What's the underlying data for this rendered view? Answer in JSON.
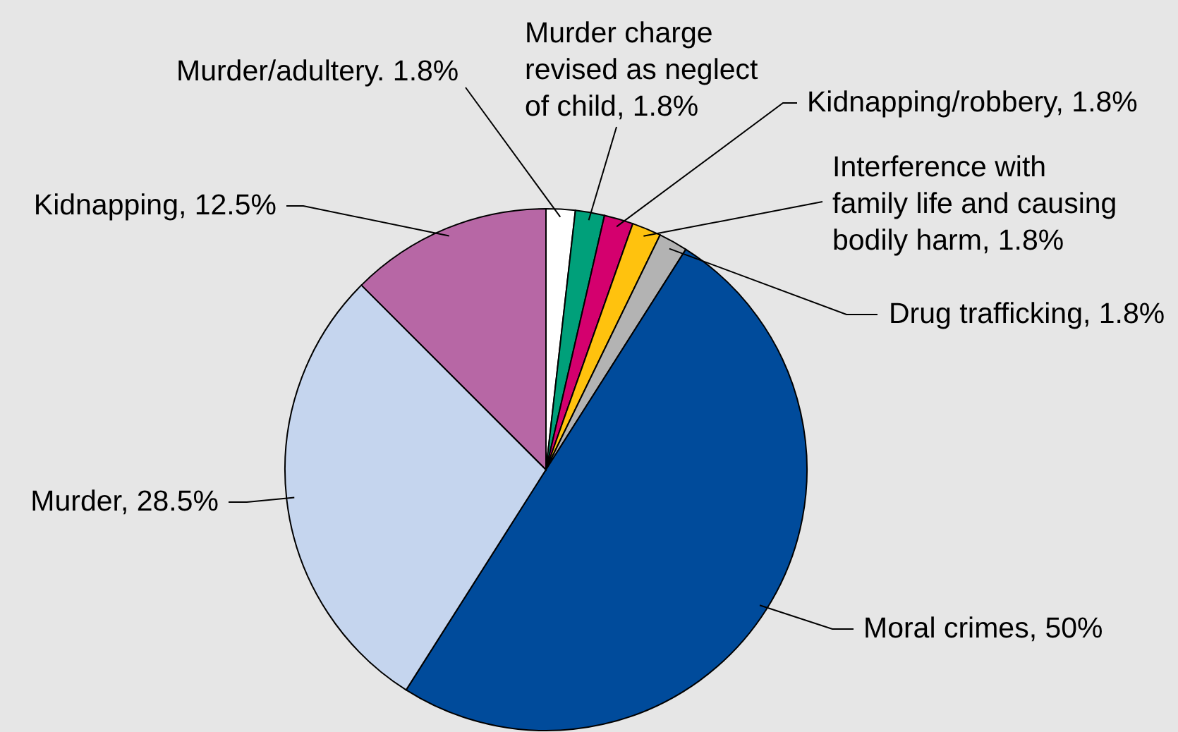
{
  "chart_data": {
    "type": "pie",
    "categories": [
      "Murder/adultery.",
      "Murder charge revised as neglect of child",
      "Kidnapping/robbery",
      "Interference with family life and causing bodily harm",
      "Drug trafficking",
      "Moral crimes",
      "Murder",
      "Kidnapping"
    ],
    "values": [
      1.8,
      1.8,
      1.8,
      1.8,
      1.8,
      50,
      28.5,
      12.5
    ],
    "value_labels": [
      "1.8%",
      "1.8%",
      "1.8%",
      "1.8%",
      "1.8%",
      "50%",
      "28.5%",
      "12.5%"
    ],
    "colors": [
      "#ffffff",
      "#00a07a",
      "#d4006e",
      "#ffc20e",
      "#b3b3b3",
      "#004b9b",
      "#c5d5ee",
      "#b767a5"
    ]
  }
}
